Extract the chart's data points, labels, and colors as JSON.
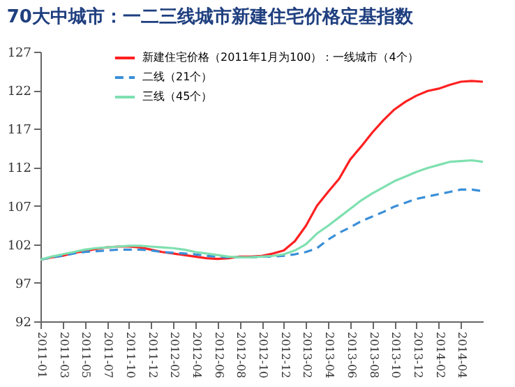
{
  "chart_data": {
    "type": "line",
    "title": "70大中城市：一二三线城市新建住宅价格定基指数",
    "categories": [
      "2011-01",
      null,
      "2011-03",
      null,
      "2011-05",
      null,
      "2011-07",
      null,
      "2011-10",
      null,
      "2011-12",
      null,
      "2012-02",
      null,
      "2012-04",
      null,
      "2012-06",
      null,
      "2012-08",
      null,
      "2012-10",
      null,
      "2012-12",
      null,
      "2013-02",
      null,
      "2013-04",
      null,
      "2013-06",
      null,
      "2013-08",
      null,
      "2013-10",
      null,
      "2013-12",
      null,
      "2014-02",
      null,
      "2014-04",
      null,
      null
    ],
    "series": [
      {
        "name": "新建住宅价格（2011年1月为100）：一线城市（4个）",
        "color": "#ff2020",
        "line_style": "solid",
        "values": [
          100.0,
          100.3,
          100.5,
          100.9,
          101.1,
          101.4,
          101.6,
          101.7,
          101.7,
          101.6,
          101.3,
          101.0,
          100.8,
          100.6,
          100.4,
          100.2,
          100.1,
          100.2,
          100.4,
          100.4,
          100.5,
          100.8,
          101.2,
          102.4,
          104.4,
          107.0,
          108.8,
          110.5,
          113.0,
          114.7,
          116.5,
          118.1,
          119.5,
          120.5,
          121.3,
          121.9,
          122.2,
          122.7,
          123.1,
          123.2,
          123.1
        ]
      },
      {
        "name": "二线（21个）",
        "color": "#3a8fd8",
        "line_style": "dashed",
        "values": [
          100.0,
          100.3,
          100.5,
          100.8,
          101.0,
          101.1,
          101.2,
          101.3,
          101.3,
          101.3,
          101.2,
          101.0,
          100.9,
          100.8,
          100.7,
          100.5,
          100.4,
          100.3,
          100.3,
          100.3,
          100.4,
          100.4,
          100.5,
          100.7,
          101.0,
          101.5,
          102.6,
          103.5,
          104.2,
          105.0,
          105.6,
          106.2,
          106.9,
          107.4,
          107.9,
          108.2,
          108.5,
          108.8,
          109.1,
          109.1,
          108.9
        ]
      },
      {
        "name": "三线（45个）",
        "color": "#7fe0b0",
        "line_style": "solid",
        "values": [
          100.0,
          100.4,
          100.7,
          101.0,
          101.3,
          101.5,
          101.6,
          101.7,
          101.8,
          101.8,
          101.7,
          101.6,
          101.5,
          101.3,
          101.0,
          100.8,
          100.6,
          100.4,
          100.3,
          100.3,
          100.4,
          100.5,
          100.7,
          101.2,
          102.0,
          103.4,
          104.4,
          105.5,
          106.6,
          107.7,
          108.6,
          109.4,
          110.2,
          110.8,
          111.4,
          111.9,
          112.3,
          112.7,
          112.8,
          112.9,
          112.7
        ]
      }
    ],
    "ylim": [
      92,
      127
    ],
    "yticks": [
      92,
      97,
      102,
      107,
      112,
      117,
      122,
      127
    ],
    "grid": false,
    "legend": "top",
    "marker": "none"
  }
}
